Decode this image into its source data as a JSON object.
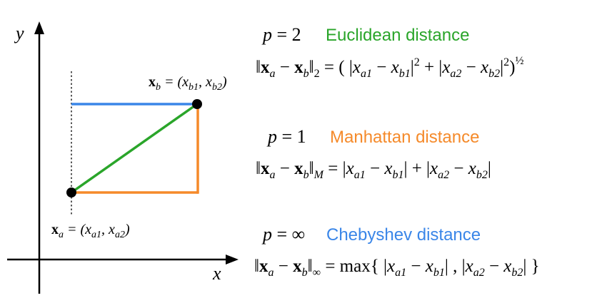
{
  "axes": {
    "x_label": "x",
    "y_label": "y"
  },
  "points": {
    "b": {
      "vec": "x",
      "sub": "b",
      "eq": " = (",
      "c1": "x",
      "c1sub": "b1",
      "sep": ", ",
      "c2": "x",
      "c2sub": "b2",
      "close": ")"
    },
    "a": {
      "vec": "x",
      "sub": "a",
      "eq": " = (",
      "c1": "x",
      "c1sub": "a1",
      "sep": ", ",
      "c2": "x",
      "c2sub": "a2",
      "close": ")"
    }
  },
  "metrics": [
    {
      "p_label": "p",
      "p_value": " = 2",
      "name": "Euclidean distance",
      "formula": "‖x_a − x_b‖₂ = ( |x_a1 − x_b1|² + |x_a2 − x_b2|² )^½"
    },
    {
      "p_label": "p",
      "p_value": " = 1",
      "name": "Manhattan distance",
      "formula": "‖x_a − x_b‖_M = |x_a1 − x_b1| + |x_a2 − x_b2|"
    },
    {
      "p_label": "p",
      "p_value": " = ∞",
      "name": "Chebyshev distance",
      "formula": "‖x_a − x_b‖_∞ = max{ |x_a1 − x_b1| , |x_a2 − x_b2| }"
    }
  ],
  "colors": {
    "euclidean": "#2aa52a",
    "manhattan": "#f58a2a",
    "chebyshev": "#3a86e8",
    "axis": "#000000"
  }
}
